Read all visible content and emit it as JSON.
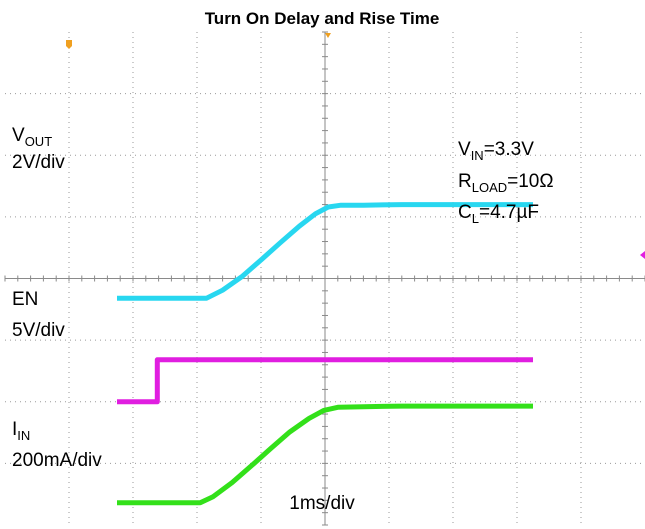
{
  "chart_data": {
    "type": "line",
    "title": "Turn On Delay and Rise Time",
    "time_scale_label": "1ms/div",
    "x_unit": "ms",
    "x_range": [
      -3.25,
      3.25
    ],
    "divisions": {
      "x": 10,
      "y": 8
    },
    "series": [
      {
        "name": "VOUT",
        "scale_label": "2V/div",
        "color": "#28d7f0",
        "x": [
          -3.25,
          -1.85,
          -1.6,
          -1.3,
          -1.0,
          -0.7,
          -0.4,
          -0.15,
          0.05,
          0.25,
          0.6,
          1.2,
          2.0,
          3.25
        ],
        "y": [
          0.0,
          0.0,
          0.13,
          0.35,
          0.62,
          0.9,
          1.17,
          1.37,
          1.48,
          1.51,
          1.51,
          1.52,
          1.52,
          1.52
        ]
      },
      {
        "name": "EN",
        "scale_label": "5V/div",
        "color": "#e01ee0",
        "x": [
          -3.25,
          -2.62,
          -2.62,
          3.25
        ],
        "y": [
          0.0,
          0.0,
          0.68,
          0.68
        ]
      },
      {
        "name": "IIN",
        "scale_label": "200mA/div",
        "color": "#33e01a",
        "x": [
          -3.25,
          -1.95,
          -1.75,
          -1.45,
          -1.15,
          -0.85,
          -0.55,
          -0.25,
          -0.02,
          0.2,
          0.6,
          1.2,
          2.0,
          3.25
        ],
        "y": [
          0.0,
          0.0,
          0.1,
          0.33,
          0.6,
          0.88,
          1.15,
          1.37,
          1.5,
          1.55,
          1.56,
          1.57,
          1.57,
          1.57
        ]
      }
    ],
    "conditions": {
      "vin": {
        "label": "V",
        "sub": "IN",
        "value": "=3.3V"
      },
      "rload": {
        "label": "R",
        "sub": "LOAD",
        "value": "=10Ω"
      },
      "cl": {
        "label": "C",
        "sub": "L",
        "value": "=4.7µF"
      }
    },
    "channel_labels": {
      "vout": {
        "label": "V",
        "sub": "OUT",
        "scale": "2V/div"
      },
      "en": {
        "label": "EN",
        "scale": "5V/div"
      },
      "iin": {
        "label": "I",
        "sub": "IN",
        "scale": "200mA/div"
      }
    },
    "grid": true,
    "legend": "none"
  }
}
